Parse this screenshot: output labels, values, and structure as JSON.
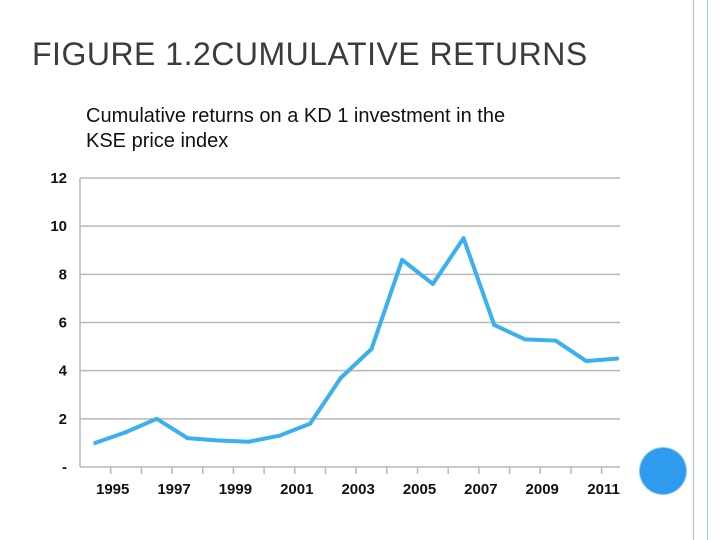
{
  "slide": {
    "title": "FIGURE 1.2CUMULATIVE RETURNS"
  },
  "colors": {
    "line": "#3bb0ee",
    "grid": "#b8b8b8",
    "circle": "#2e9bef",
    "side_rule": "#9fc6dc"
  },
  "chart_data": {
    "type": "line",
    "title": "Cumulative returns on a KD 1 investment in the KSE price index",
    "title_lines": [
      "Cumulative returns on a KD 1 investment in the",
      "KSE price index"
    ],
    "xlabel": "",
    "ylabel": "",
    "x": [
      1994.5,
      1995.5,
      1996.5,
      1997.5,
      1998.5,
      1999.5,
      2000.5,
      2001.5,
      2002.5,
      2003.5,
      2004.5,
      2005.5,
      2006.5,
      2007.5,
      2008.5,
      2009.5,
      2010.5,
      2011.5
    ],
    "series": [
      {
        "values": [
          1.0,
          1.45,
          2.0,
          1.2,
          1.1,
          1.05,
          1.3,
          1.8,
          3.7,
          4.9,
          8.6,
          7.6,
          9.5,
          5.9,
          5.3,
          5.25,
          4.4,
          4.5
        ]
      }
    ],
    "xlim": [
      1994,
      2011.6
    ],
    "ylim": [
      0,
      12
    ],
    "y_ticks": [
      0,
      2,
      4,
      6,
      8,
      10,
      12
    ],
    "y_tick_labels": [
      "-",
      "2",
      "4",
      "6",
      "8",
      "10",
      "12"
    ],
    "x_ticks": [
      1995,
      1997,
      1999,
      2001,
      2003,
      2005,
      2007,
      2009,
      2011
    ],
    "x_tick_labels": [
      "1995",
      "1997",
      "1999",
      "2001",
      "2003",
      "2005",
      "2007",
      "2009",
      "2011"
    ],
    "x_minor_ticks": [
      1995,
      1996,
      1997,
      1998,
      1999,
      2000,
      2001,
      2002,
      2003,
      2004,
      2005,
      2006,
      2007,
      2008,
      2009,
      2010,
      2011
    ],
    "grid": true,
    "legend": "none"
  }
}
